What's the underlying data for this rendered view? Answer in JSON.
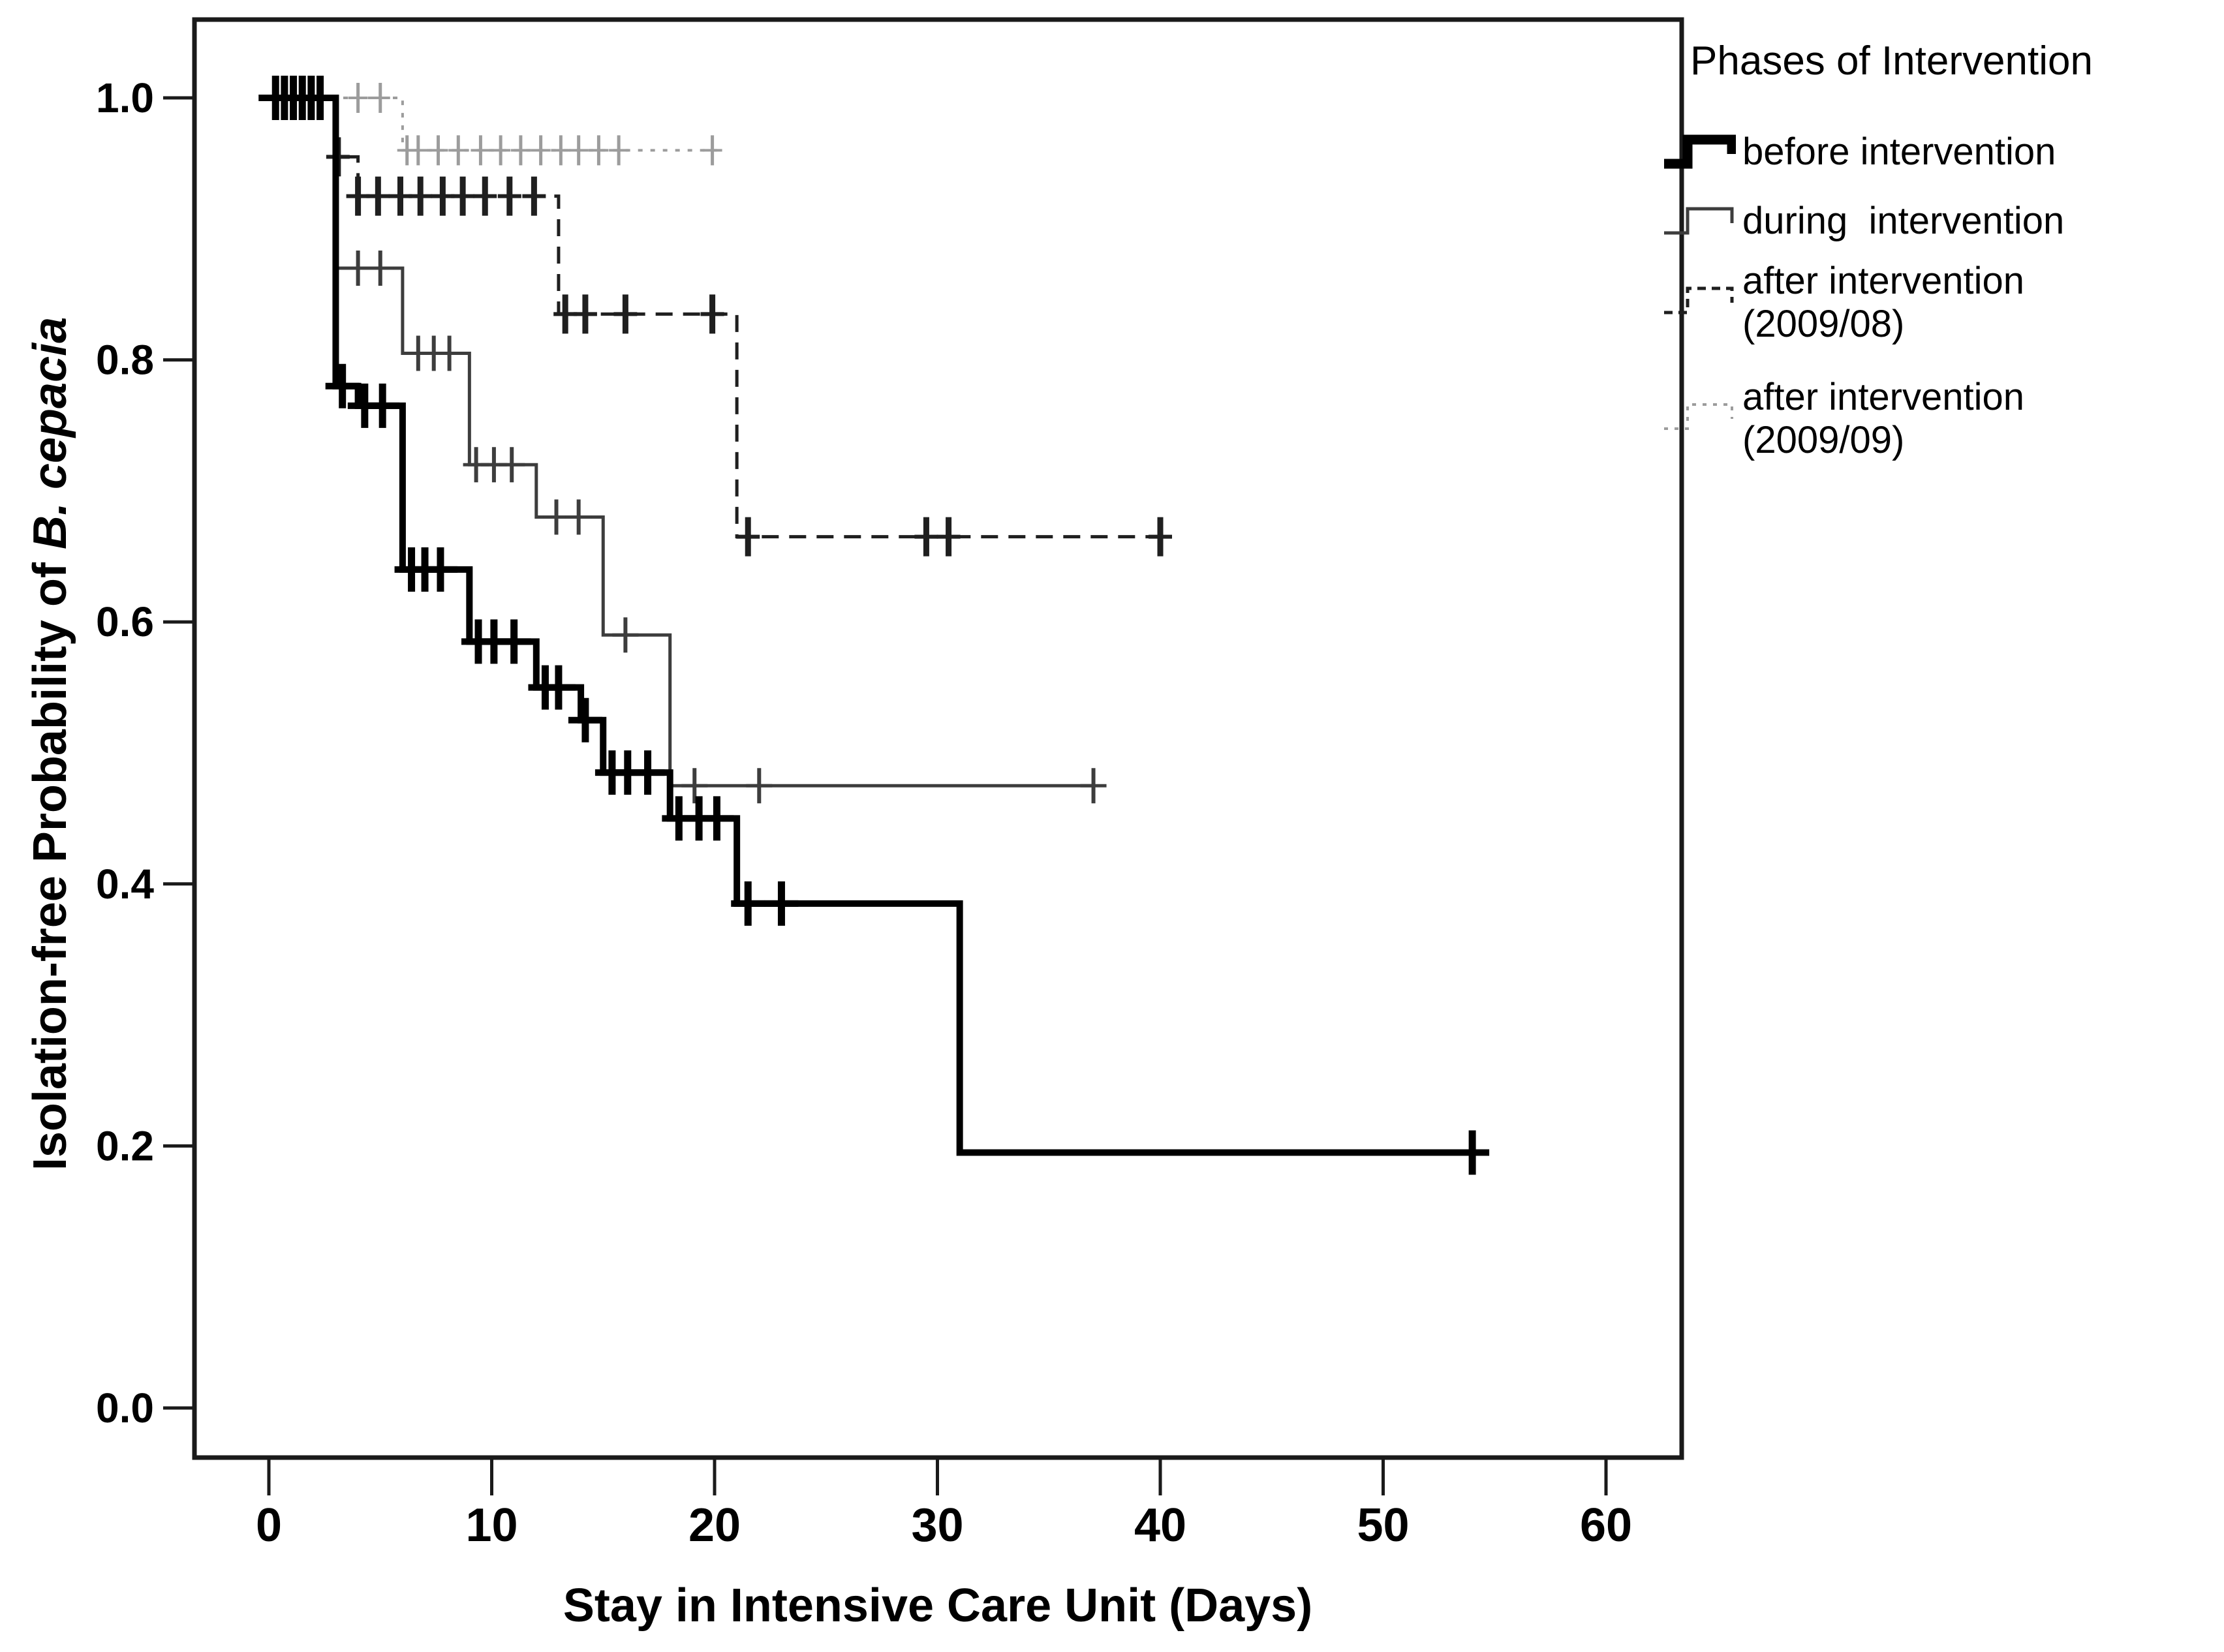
{
  "page": {
    "background": "#ffffff"
  },
  "chart_data": {
    "type": "line",
    "subtype": "kaplan-meier-step-survival",
    "title": "",
    "xlabel": "Stay in Intensive Care Unit (Days)",
    "ylabel_regular": "Isolation-free Probability of ",
    "ylabel_italic": "B. cepacia",
    "xlim": [
      0,
      60
    ],
    "ylim": [
      0.0,
      1.0
    ],
    "xticks": [
      0,
      10,
      20,
      30,
      40,
      50,
      60
    ],
    "yticks": [
      0.0,
      0.2,
      0.4,
      0.6,
      0.8,
      1.0
    ],
    "grid": false,
    "legend_title": "Phases of Intervention",
    "legend_position": "right-top",
    "frame_color": "#1a1a1a",
    "series": [
      {
        "name": "before intervention",
        "legend_label": "before intervention",
        "style": {
          "color": "#000000",
          "line_width": 10,
          "dash": null,
          "censor_stroke": 11,
          "censor_halfheight": 34,
          "censor_halfwidth": 26,
          "legend_stroke": 15,
          "legend_dash": null
        },
        "steps": [
          [
            0,
            1.0
          ],
          [
            3,
            0.78
          ],
          [
            4,
            0.765
          ],
          [
            6,
            0.64
          ],
          [
            9,
            0.585
          ],
          [
            12,
            0.55
          ],
          [
            14,
            0.525
          ],
          [
            15,
            0.485
          ],
          [
            18,
            0.45
          ],
          [
            21,
            0.385
          ],
          [
            31,
            0.195
          ]
        ],
        "end": 54,
        "censors": [
          [
            0.3,
            1.0
          ],
          [
            0.7,
            1.0
          ],
          [
            1.1,
            1.0
          ],
          [
            1.5,
            1.0
          ],
          [
            1.9,
            1.0
          ],
          [
            2.3,
            1.0
          ],
          [
            3.3,
            0.78
          ],
          [
            4.3,
            0.765
          ],
          [
            5.1,
            0.765
          ],
          [
            6.4,
            0.64
          ],
          [
            7.0,
            0.64
          ],
          [
            7.7,
            0.64
          ],
          [
            9.4,
            0.585
          ],
          [
            10.1,
            0.585
          ],
          [
            11.0,
            0.585
          ],
          [
            12.4,
            0.55
          ],
          [
            13.0,
            0.55
          ],
          [
            14.2,
            0.525
          ],
          [
            15.4,
            0.485
          ],
          [
            16.1,
            0.485
          ],
          [
            17.0,
            0.485
          ],
          [
            18.4,
            0.45
          ],
          [
            19.3,
            0.45
          ],
          [
            20.1,
            0.45
          ],
          [
            21.5,
            0.385
          ],
          [
            23.0,
            0.385
          ],
          [
            54,
            0.195
          ]
        ]
      },
      {
        "name": "during  intervention",
        "legend_label": "during  intervention",
        "style": {
          "color": "#3d3d3d",
          "line_width": 5,
          "dash": null,
          "censor_stroke": 6,
          "censor_halfheight": 27,
          "censor_halfwidth": 20,
          "legend_stroke": 5,
          "legend_dash": null
        },
        "steps": [
          [
            0,
            1.0
          ],
          [
            3,
            0.87
          ],
          [
            6,
            0.805
          ],
          [
            9,
            0.72
          ],
          [
            12,
            0.68
          ],
          [
            15,
            0.59
          ],
          [
            18,
            0.475
          ]
        ],
        "end": 37,
        "censors": [
          [
            4.0,
            0.87
          ],
          [
            5.0,
            0.87
          ],
          [
            6.7,
            0.805
          ],
          [
            7.4,
            0.805
          ],
          [
            8.1,
            0.805
          ],
          [
            9.3,
            0.72
          ],
          [
            10.1,
            0.72
          ],
          [
            10.9,
            0.72
          ],
          [
            12.9,
            0.68
          ],
          [
            13.9,
            0.68
          ],
          [
            16.0,
            0.59
          ],
          [
            19.1,
            0.475
          ],
          [
            22.0,
            0.475
          ],
          [
            37,
            0.475
          ]
        ]
      },
      {
        "name": "after intervention (2009/08)",
        "legend_label": "after intervention\n(2009/08)",
        "style": {
          "color": "#1f1f1f",
          "line_width": 5,
          "dash": "26 16",
          "censor_stroke": 9,
          "censor_halfheight": 30,
          "censor_halfwidth": 18,
          "legend_stroke": 5,
          "legend_dash": "13 9"
        },
        "steps": [
          [
            0,
            1.0
          ],
          [
            3,
            0.955
          ],
          [
            4,
            0.925
          ],
          [
            13,
            0.835
          ],
          [
            21,
            0.665
          ]
        ],
        "end": 40,
        "censors": [
          [
            3.1,
            0.955
          ],
          [
            4.0,
            0.925
          ],
          [
            4.9,
            0.925
          ],
          [
            5.9,
            0.925
          ],
          [
            6.8,
            0.925
          ],
          [
            7.8,
            0.925
          ],
          [
            8.7,
            0.925
          ],
          [
            9.7,
            0.925
          ],
          [
            10.8,
            0.925
          ],
          [
            11.9,
            0.925
          ],
          [
            13.3,
            0.835
          ],
          [
            14.2,
            0.835
          ],
          [
            16.0,
            0.835
          ],
          [
            19.9,
            0.835
          ],
          [
            21.5,
            0.665
          ],
          [
            29.5,
            0.665
          ],
          [
            30.5,
            0.665
          ],
          [
            40,
            0.665
          ]
        ]
      },
      {
        "name": "after intervention (2009/09)",
        "legend_label": "after intervention\n(2009/09)",
        "style": {
          "color": "#9c9c9c",
          "line_width": 4,
          "dash": "7 12",
          "censor_stroke": 5,
          "censor_halfheight": 23,
          "censor_halfwidth": 15,
          "legend_stroke": 4,
          "legend_dash": "6 10"
        },
        "steps": [
          [
            0,
            1.0
          ],
          [
            6,
            0.96
          ]
        ],
        "end": 20.3,
        "censors": [
          [
            4.0,
            1.0
          ],
          [
            5.0,
            1.0
          ],
          [
            6.2,
            0.96
          ],
          [
            6.7,
            0.96
          ],
          [
            7.6,
            0.96
          ],
          [
            8.5,
            0.96
          ],
          [
            9.5,
            0.96
          ],
          [
            10.4,
            0.96
          ],
          [
            11.3,
            0.96
          ],
          [
            12.2,
            0.96
          ],
          [
            13.1,
            0.96
          ],
          [
            13.9,
            0.96
          ],
          [
            14.8,
            0.96
          ],
          [
            15.7,
            0.96
          ],
          [
            19.9,
            0.96
          ]
        ]
      }
    ]
  }
}
